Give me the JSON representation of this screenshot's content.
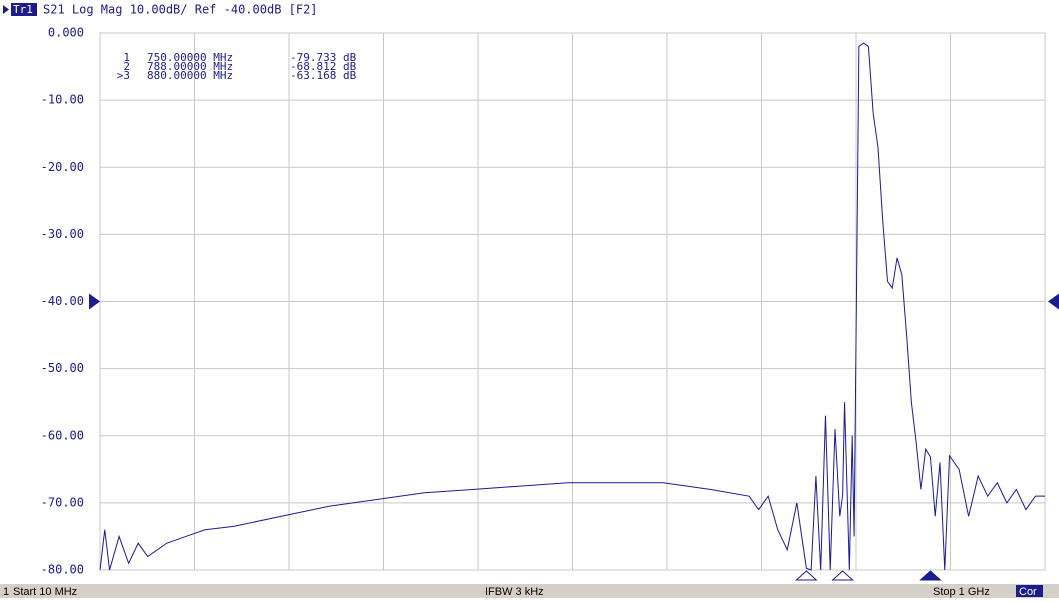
{
  "chart_data": {
    "type": "line",
    "trace_tag": "Tr1",
    "title": "S21 Log Mag 10.00dB/ Ref -40.00dB [F2]",
    "ref_level": -40,
    "xlim": [
      10,
      1000
    ],
    "xticks": [
      10,
      109,
      208,
      307,
      406,
      505,
      604,
      703,
      802,
      901,
      1000
    ],
    "ylim": [
      -80,
      0
    ],
    "yticks": [
      {
        "value": 0,
        "label": "0.000"
      },
      {
        "value": -10,
        "label": "-10.00"
      },
      {
        "value": -20,
        "label": "-20.00"
      },
      {
        "value": -30,
        "label": "-30.00"
      },
      {
        "value": -40,
        "label": "-40.00"
      },
      {
        "value": -50,
        "label": "-50.00"
      },
      {
        "value": -60,
        "label": "-60.00"
      },
      {
        "value": -70,
        "label": "-70.00"
      },
      {
        "value": -80,
        "label": "-80.00"
      }
    ],
    "grid": true,
    "series": [
      {
        "name": "S21",
        "color": "#1a1a96",
        "x": [
          10,
          15,
          20,
          30,
          40,
          50,
          60,
          80,
          100,
          120,
          150,
          200,
          250,
          300,
          350,
          400,
          450,
          500,
          550,
          600,
          650,
          690,
          700,
          710,
          720,
          730,
          740,
          750,
          755,
          760,
          765,
          770,
          775,
          780,
          785,
          788,
          790,
          795,
          798,
          800,
          805,
          810,
          815,
          820,
          825,
          830,
          835,
          840,
          845,
          850,
          855,
          860,
          865,
          870,
          875,
          880,
          885,
          890,
          895,
          900,
          910,
          920,
          930,
          940,
          950,
          960,
          970,
          980,
          990,
          1000
        ],
        "values": [
          -80,
          -74,
          -80,
          -75,
          -79,
          -76,
          -78,
          -76,
          -75,
          -74,
          -73.5,
          -72,
          -70.5,
          -69.5,
          -68.5,
          -68,
          -67.5,
          -67,
          -67,
          -67,
          -68,
          -69,
          -71,
          -69,
          -74,
          -77,
          -70,
          -79.733,
          -80,
          -66,
          -80,
          -57,
          -80,
          -59,
          -72,
          -68.812,
          -55,
          -80,
          -60,
          -75,
          -2,
          -1.5,
          -2,
          -12,
          -17,
          -28,
          -37,
          -38,
          -33.5,
          -36,
          -45,
          -55,
          -61,
          -68,
          -62,
          -63.168,
          -72,
          -64,
          -80,
          -63,
          -65,
          -72,
          -66,
          -69,
          -67,
          -70,
          -68,
          -71,
          -69,
          -69
        ]
      }
    ],
    "markers": [
      {
        "name": "1",
        "x": 750,
        "x_label": "750.00000 MHz",
        "y": -79.733,
        "y_label": "-79.733 dB",
        "active": false
      },
      {
        "name": "2",
        "x": 788,
        "x_label": "788.00000 MHz",
        "y": -68.812,
        "y_label": "-68.812 dB",
        "active": false
      },
      {
        "name": ">3",
        "x": 880,
        "x_label": "880.00000 MHz",
        "y": -63.168,
        "y_label": "-63.168 dB",
        "active": true
      }
    ]
  },
  "status_bar": {
    "channel": "1",
    "start": "Start 10 MHz",
    "ifbw": "IFBW 3 kHz",
    "stop": "Stop 1 GHz",
    "correction": "Cor"
  }
}
